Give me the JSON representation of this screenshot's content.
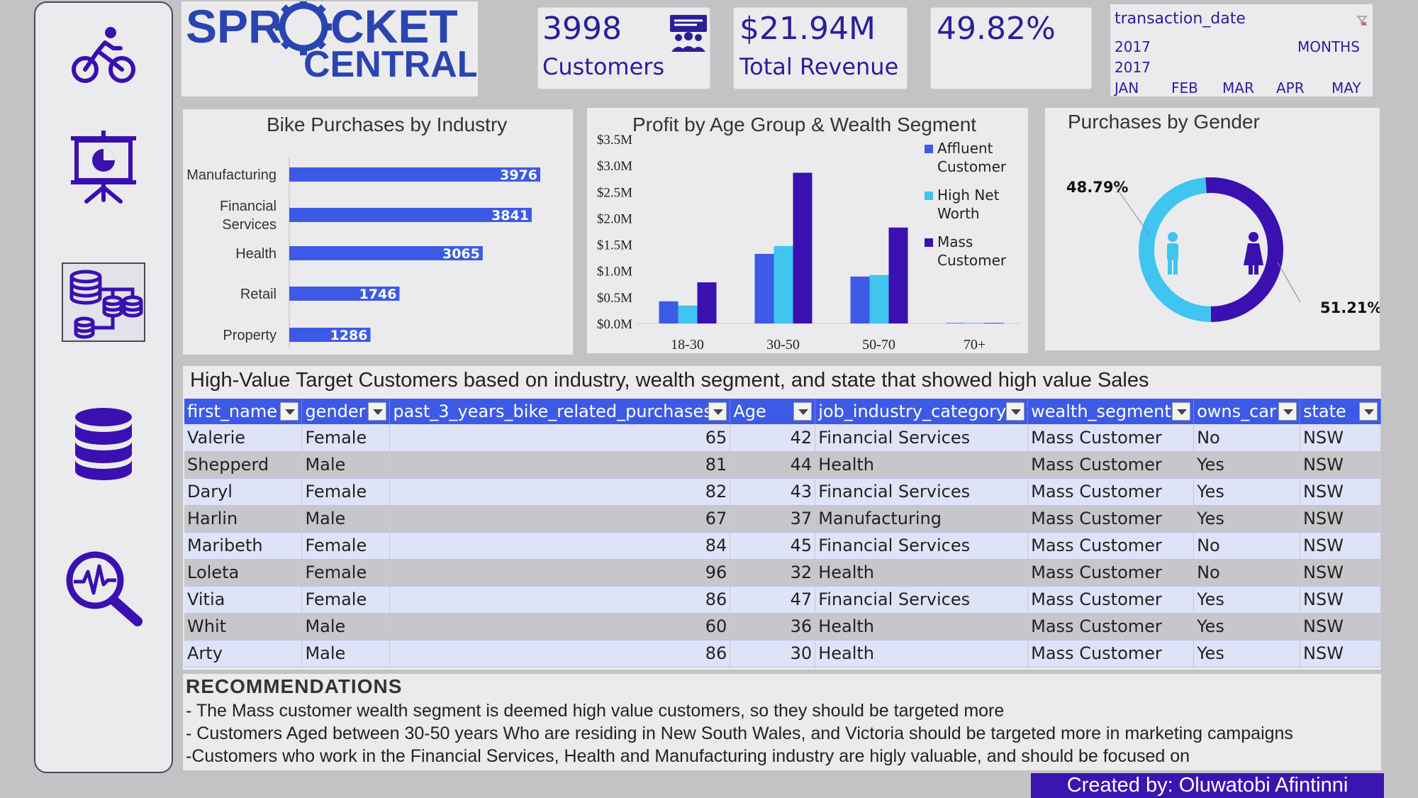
{
  "sidebar": {
    "items": [
      {
        "name": "bike",
        "icon": "bike-icon"
      },
      {
        "name": "presentation",
        "icon": "presentation-chart-icon"
      },
      {
        "name": "data-model",
        "icon": "database-network-icon"
      },
      {
        "name": "database",
        "icon": "database-icon"
      },
      {
        "name": "analytics",
        "icon": "analytics-search-icon"
      }
    ]
  },
  "logo": {
    "line1": "SPR",
    "line1b": "CKET",
    "line2": "CENTRAL"
  },
  "kpis": {
    "customers_value": "3998",
    "customers_label": "Customers",
    "revenue_value": "$21.94M",
    "revenue_label": "Total Revenue",
    "percent_value": "49.82%"
  },
  "slicer": {
    "field": "transaction_date",
    "year_top": "2017",
    "year_bottom": "2017",
    "period": "MONTHS",
    "months": [
      "JAN",
      "FEB",
      "MAR",
      "APR",
      "MAY"
    ]
  },
  "colors": {
    "accent": "#2a1e9a",
    "bar_blue": "#3d5ae6",
    "light_blue": "#40c4f0",
    "dark_purple": "#3a10b0"
  },
  "chart_data": [
    {
      "type": "bar",
      "orientation": "horizontal",
      "title": "Bike Purchases by Industry",
      "categories": [
        "Manufacturing",
        "Financial Services",
        "Health",
        "Retail",
        "Property"
      ],
      "values": [
        3976,
        3841,
        3065,
        1746,
        1286
      ]
    },
    {
      "type": "bar",
      "title": "Profit by Age Group & Wealth Segment",
      "categories": [
        "18-30",
        "30-50",
        "50-70",
        "70+"
      ],
      "yticks": [
        "$0.0M",
        "$0.5M",
        "$1.0M",
        "$1.5M",
        "$2.0M",
        "$2.5M",
        "$3.0M",
        "$3.5M"
      ],
      "ylim": [
        0,
        3.5
      ],
      "legend_position": "right",
      "series": [
        {
          "name": "Affluent Customer",
          "values": [
            0.42,
            1.32,
            0.89,
            0.01
          ]
        },
        {
          "name": "High Net Worth",
          "values": [
            0.34,
            1.47,
            0.92,
            0.01
          ]
        },
        {
          "name": "Mass Customer",
          "values": [
            0.78,
            2.86,
            1.82,
            0.01
          ]
        }
      ]
    },
    {
      "type": "pie",
      "title": "Purchases by Gender",
      "labels": [
        "48.79%",
        "51.21%"
      ],
      "values": [
        48.79,
        51.21
      ]
    }
  ],
  "table": {
    "title": "High-Value Target Customers based on industry, wealth segment, and state that showed high value Sales",
    "columns": [
      "first_name",
      "gender",
      "past_3_years_bike_related_purchases",
      "Age",
      "job_industry_category",
      "wealth_segment",
      "owns_car",
      "state"
    ],
    "rows": [
      [
        "Valerie",
        "Female",
        "65",
        "42",
        "Financial Services",
        "Mass Customer",
        "No",
        "NSW"
      ],
      [
        "Shepperd",
        "Male",
        "81",
        "44",
        "Health",
        "Mass Customer",
        "Yes",
        "NSW"
      ],
      [
        "Daryl",
        "Female",
        "82",
        "43",
        "Financial Services",
        "Mass Customer",
        "Yes",
        "NSW"
      ],
      [
        "Harlin",
        "Male",
        "67",
        "37",
        "Manufacturing",
        "Mass Customer",
        "Yes",
        "NSW"
      ],
      [
        "Maribeth",
        "Female",
        "84",
        "45",
        "Financial Services",
        "Mass Customer",
        "No",
        "NSW"
      ],
      [
        "Loleta",
        "Female",
        "96",
        "32",
        "Health",
        "Mass Customer",
        "No",
        "NSW"
      ],
      [
        "Vitia",
        "Female",
        "86",
        "47",
        "Financial Services",
        "Mass Customer",
        "Yes",
        "NSW"
      ],
      [
        "Whit",
        "Male",
        "60",
        "36",
        "Health",
        "Mass Customer",
        "Yes",
        "NSW"
      ],
      [
        "Arty",
        "Male",
        "86",
        "30",
        "Health",
        "Mass Customer",
        "Yes",
        "NSW"
      ]
    ]
  },
  "recommendations": {
    "title": "RECOMMENDATIONS",
    "lines": [
      "- The Mass customer wealth segment is deemed high value customers, so they should be targeted more",
      "- Customers Aged between 30-50 years Who are residing in New South Wales, and Victoria should be targeted more in marketing campaigns",
      "-Customers who work in the Financial Services, Health and Manufacturing industry are higly valuable, and should be focused on"
    ]
  },
  "credit": "Created by: Oluwatobi Afintinni"
}
